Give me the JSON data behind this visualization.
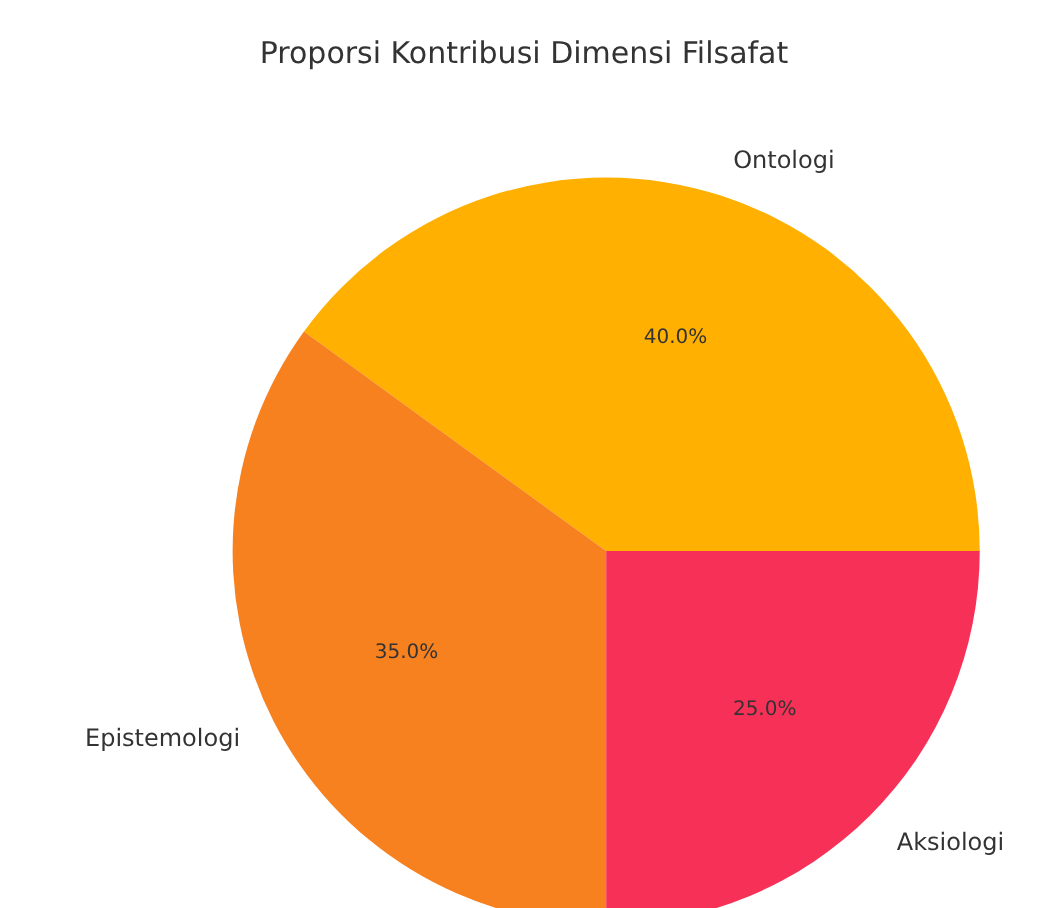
{
  "chart_data": {
    "type": "pie",
    "title": "Proporsi Kontribusi Dimensi Filsafat",
    "categories": [
      "Ontologi",
      "Epistemologi",
      "Aksiologi"
    ],
    "values": [
      40,
      35,
      25
    ],
    "colors": [
      "#ffb000",
      "#f7801f",
      "#f73058"
    ],
    "value_labels": [
      "40.0%",
      "35.0%",
      "25.0%"
    ]
  }
}
